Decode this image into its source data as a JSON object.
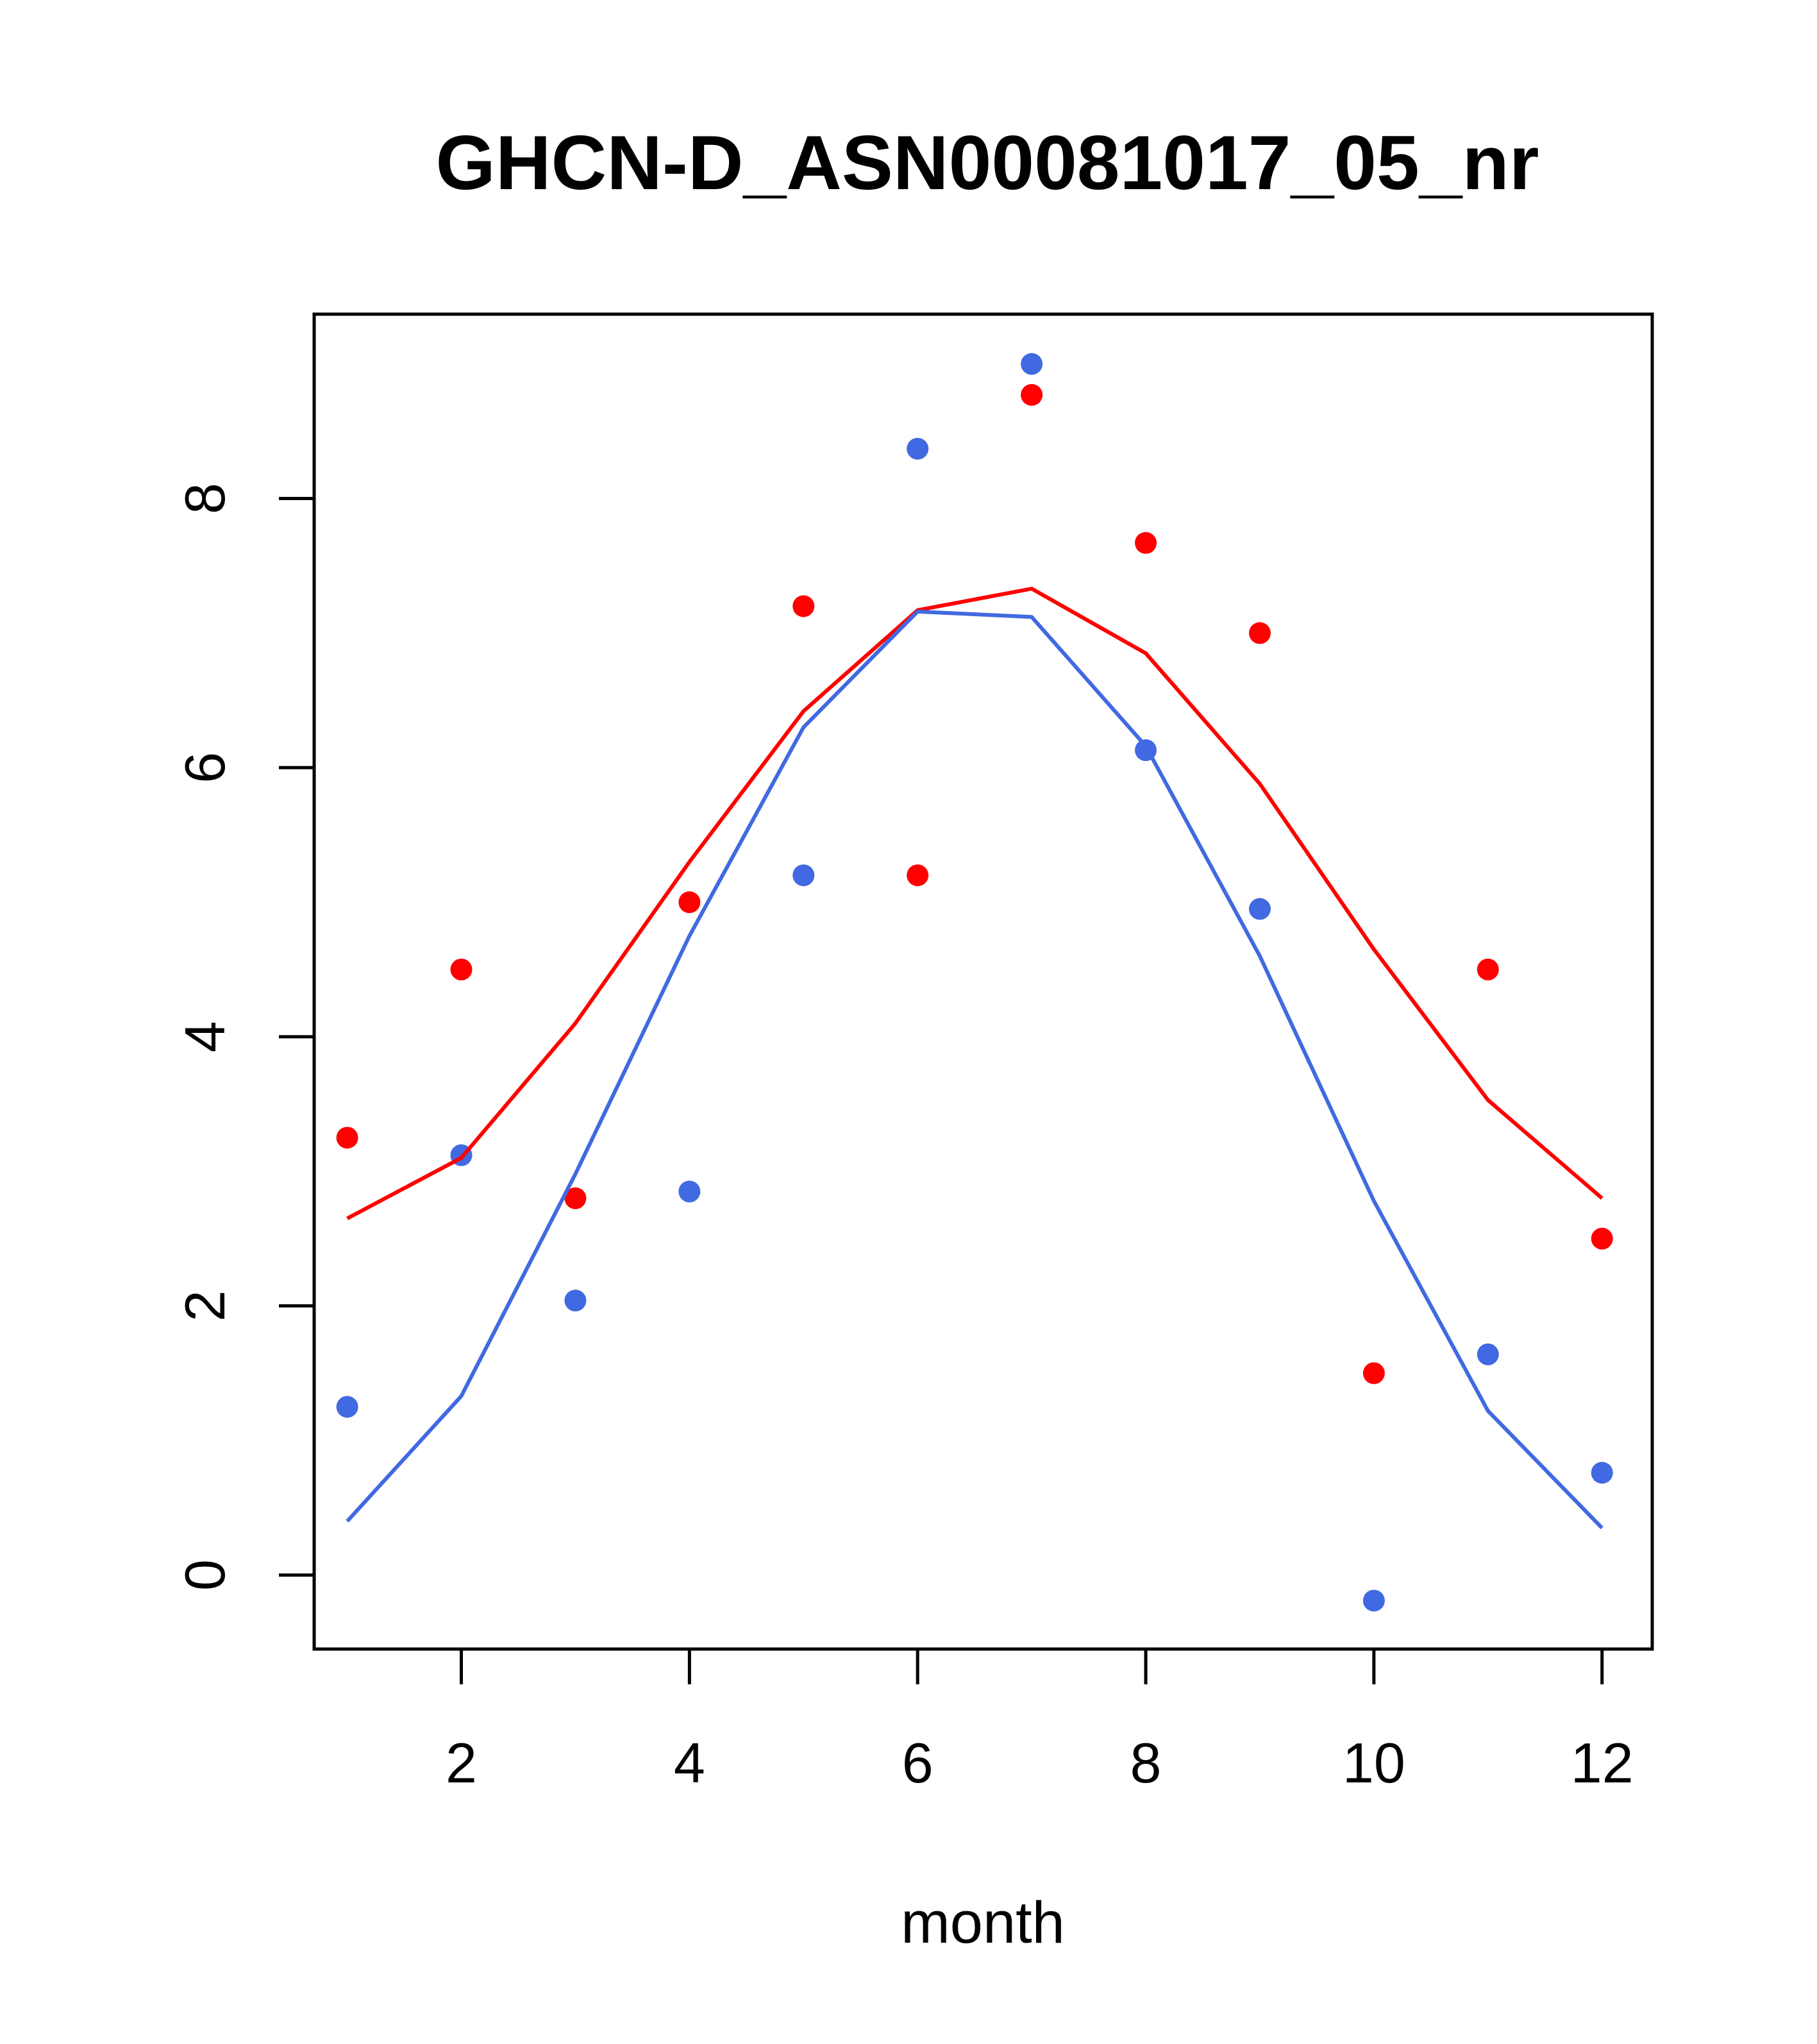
{
  "chart_data": {
    "type": "scatter",
    "title": "GHCN-D_ASN00081017_05_nr",
    "xlabel": "month",
    "ylabel": "",
    "xlim": [
      0.71,
      12.44
    ],
    "ylim": [
      -0.55,
      9.37
    ],
    "x_ticks": [
      2,
      4,
      6,
      8,
      10,
      12
    ],
    "y_ticks": [
      0,
      2,
      4,
      6,
      8
    ],
    "grid": false,
    "legend": "none",
    "series": [
      {
        "mode": "points",
        "color": "#ff0000",
        "x": [
          1,
          2,
          3,
          4,
          5,
          6,
          7,
          8,
          9,
          10,
          11,
          12
        ],
        "y": [
          3.25,
          4.5,
          2.8,
          5.0,
          7.2,
          5.2,
          8.77,
          7.67,
          7.0,
          1.5,
          4.5,
          2.5
        ]
      },
      {
        "mode": "points",
        "color": "#4169e1",
        "x": [
          1,
          2,
          3,
          4,
          5,
          6,
          7,
          8,
          9,
          10,
          11,
          12
        ],
        "y": [
          1.25,
          3.12,
          2.04,
          2.85,
          5.2,
          8.37,
          9.0,
          6.13,
          4.95,
          -0.19,
          1.64,
          0.76
        ]
      },
      {
        "mode": "line",
        "color": "#ff0000",
        "x": [
          1,
          2,
          3,
          4,
          5,
          6,
          7,
          8,
          9,
          10,
          11,
          12
        ],
        "y": [
          2.65,
          3.1,
          4.1,
          5.3,
          6.42,
          7.17,
          7.33,
          6.85,
          5.88,
          4.65,
          3.53,
          2.8
        ]
      },
      {
        "mode": "line",
        "color": "#4169e1",
        "x": [
          1,
          2,
          3,
          4,
          5,
          6,
          7,
          8,
          9,
          10,
          11,
          12
        ],
        "y": [
          0.4,
          1.33,
          2.98,
          4.75,
          6.3,
          7.16,
          7.12,
          6.16,
          4.6,
          2.78,
          1.22,
          0.35
        ]
      }
    ]
  }
}
